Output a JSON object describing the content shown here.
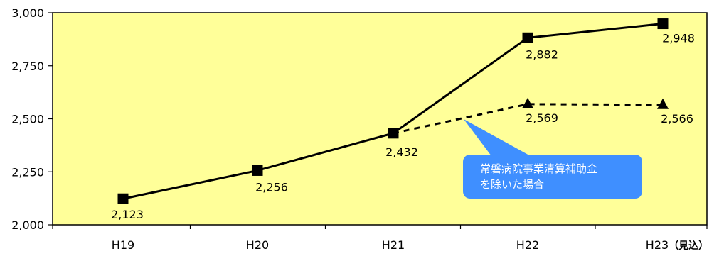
{
  "chart_data": {
    "type": "line",
    "categories": [
      "H19",
      "H20",
      "H21",
      "H22",
      "H23"
    ],
    "category_suffix": [
      "",
      "",
      "",
      "",
      "（見込）"
    ],
    "ylim": [
      2000,
      3000
    ],
    "yticks": [
      2000,
      2250,
      2500,
      2750,
      3000
    ],
    "ytick_labels": [
      "2,000",
      "2,250",
      "2,500",
      "2,750",
      "3,000"
    ],
    "grid": false,
    "series": [
      {
        "marker": "square",
        "line": "solid",
        "values": [
          2123,
          2256,
          2432,
          2882,
          2948
        ],
        "labels": [
          "2,123",
          "2,256",
          "2,432",
          "2,882",
          "2,948"
        ]
      },
      {
        "marker": "triangle",
        "line": "dashed",
        "connect_from": 2432,
        "values": [
          null,
          null,
          null,
          2569,
          2566
        ],
        "labels": [
          "",
          "",
          "",
          "2,569",
          "2,566"
        ]
      }
    ],
    "annotation": {
      "lines": [
        "常磐病院事業清算補助金",
        "を除いた場合"
      ],
      "points_to_series": 1
    }
  },
  "colors": {
    "plot_background": "#ffff99",
    "line": "#000000",
    "callout_fill": "#3f8fff",
    "callout_text": "#ffffff"
  }
}
